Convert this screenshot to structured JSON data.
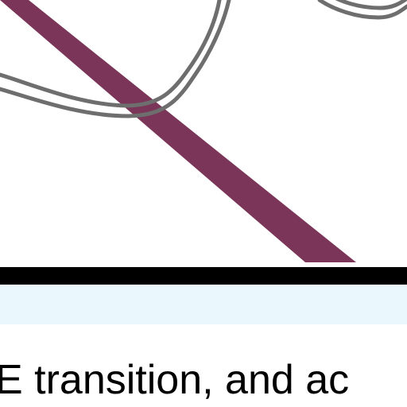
{
  "caption": {
    "text": "E transition, and ac"
  },
  "colors": {
    "diagonal_band": "#7a3558",
    "curves": "#6e6e6e",
    "baseline_bar": "#000000",
    "lower_band": "#eaf8fd",
    "background": "#ffffff"
  }
}
